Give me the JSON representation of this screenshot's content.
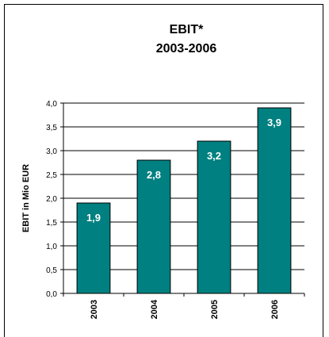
{
  "chart_data": {
    "type": "bar",
    "title": [
      "EBIT*",
      "2003-2006"
    ],
    "xlabel": "",
    "ylabel": "EBIT in Mio EUR",
    "categories": [
      "2003",
      "2004",
      "2005",
      "2006"
    ],
    "values": [
      1.9,
      2.8,
      3.2,
      3.9
    ],
    "value_labels": [
      "1,9",
      "2,8",
      "3,2",
      "3,9"
    ],
    "ylim": [
      0,
      4.0
    ],
    "yticks": [
      0,
      0.5,
      1.0,
      1.5,
      2.0,
      2.5,
      3.0,
      3.5,
      4.0
    ],
    "ytick_labels": [
      "0,0",
      "0,5",
      "1,0",
      "1,5",
      "2,0",
      "2,5",
      "3,0",
      "3,5",
      "4,0"
    ],
    "grid": true,
    "legend": "none",
    "colors": {
      "bar": "#008080",
      "bar_outline": "#000000",
      "grid": "#000000",
      "data_label": "#ffffff"
    }
  }
}
